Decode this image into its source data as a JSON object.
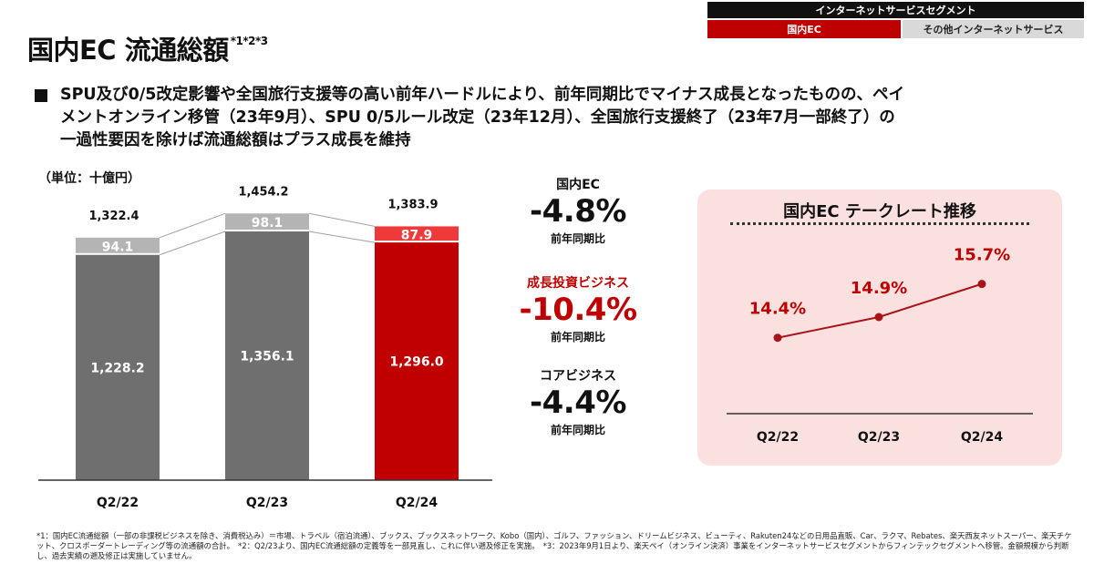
{
  "segment": {
    "header": "インターネットサービスセグメント",
    "active": "国内EC",
    "other": "その他インターネットサービス"
  },
  "title": "国内EC 流通総額",
  "title_note": "*1*2*3",
  "bullet": "SPU及び0/5改定影響や全国旅行支援等の高い前年ハードルにより、前年同期比でマイナス成長となったものの、ペイメントオンライン移管（23年9月）、SPU 0/5ルール改定（23年12月）、全国旅行支援終了（23年7月一部終了）の一過性要因を除けば流通総額はプラス成長を維持",
  "unit": "（単位：十億円）",
  "colors": {
    "base_gray": "#6f6f6f",
    "top_gray": "#b4b4b4",
    "base_red": "#c00000",
    "top_red": "#ee3a3a",
    "accent": "#bf0000",
    "line": "#a8141a",
    "panel": "#fbe0e0"
  },
  "chart_data": [
    {
      "type": "bar",
      "stacked": true,
      "categories": [
        "Q2/22",
        "Q2/23",
        "Q2/24"
      ],
      "series": [
        {
          "values": [
            1228.2,
            1356.1,
            1296.0
          ]
        },
        {
          "values": [
            94.1,
            98.1,
            87.9
          ]
        }
      ],
      "totals": [
        "1,322.4",
        "1,454.2",
        "1,383.9"
      ],
      "labels": [
        [
          "1,228.2",
          "1,356.1",
          "1,296.0"
        ],
        [
          "94.1",
          "98.1",
          "87.9"
        ]
      ],
      "highlight_index": 2,
      "ylim": [
        0,
        1550
      ]
    },
    {
      "type": "line",
      "title": "国内EC テークレート推移",
      "categories": [
        "Q2/22",
        "Q2/23",
        "Q2/24"
      ],
      "values": [
        14.4,
        14.9,
        15.7
      ],
      "labels": [
        "14.4%",
        "14.9%",
        "15.7%"
      ],
      "ylim": [
        13.8,
        16.0
      ]
    }
  ],
  "kpis": [
    {
      "name": "国内EC",
      "value": "-4.8%",
      "sub": "前年同期比",
      "accent": false
    },
    {
      "name": "成長投資ビジネス",
      "value": "-10.4%",
      "sub": "前年同期比",
      "accent": true
    },
    {
      "name": "コアビジネス",
      "value": "-4.4%",
      "sub": "前年同期比",
      "accent": false
    }
  ],
  "footnote": "*1：国内EC流通総額（一部の非課税ビジネスを除き、消費税込み）＝市場、トラベル（宿泊流通）、ブックス、ブックスネットワーク、Kobo（国内）、ゴルフ、ファッション、ドリームビジネス、ビューティ、Rakuten24などの日用品直販、Car、ラクマ、Rebates、楽天西友ネットスーパー、楽天チケット、クロスボーダートレーディング等の流通額の合計。　*2：Q2/23より、国内EC流通総額の定義等を一部見直し、これに伴い遡及修正を実施。　*3：2023年9月1日より、楽天ペイ（オンライン決済）事業をインターネットサービスセグメントからフィンテックセグメントへ移管。金額規模から判断し、過去実績の遡及修正は実施していません。"
}
